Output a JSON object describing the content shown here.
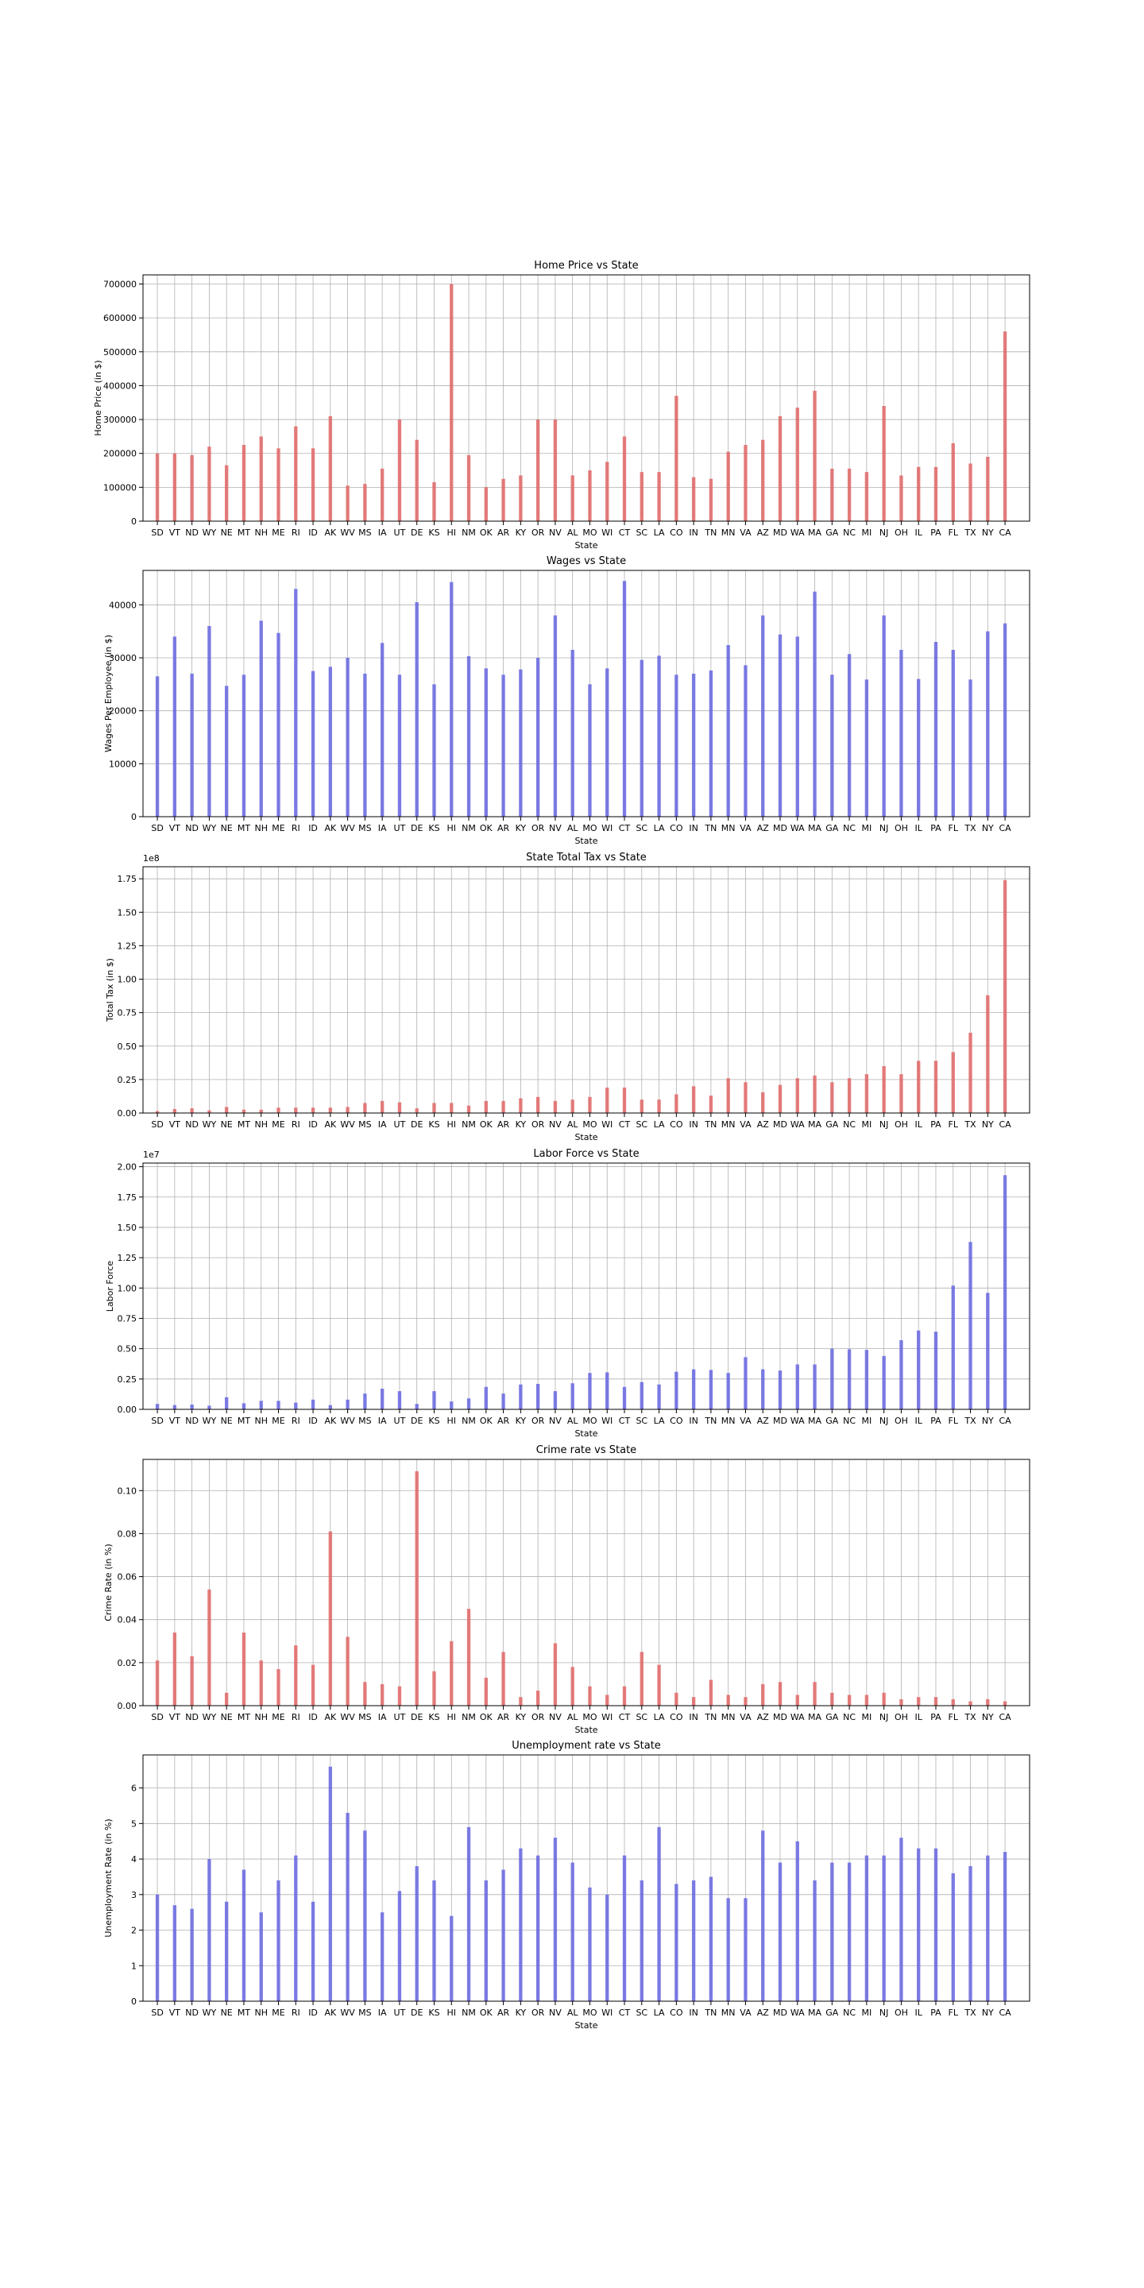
{
  "chart_data": [
    {
      "type": "bar",
      "title": "Home Price vs State",
      "xlabel": "State",
      "ylabel": "Home Price (in $)",
      "color": "#e06666",
      "categories": [
        "SD",
        "VT",
        "ND",
        "WY",
        "NE",
        "MT",
        "NH",
        "ME",
        "RI",
        "ID",
        "AK",
        "WV",
        "MS",
        "IA",
        "UT",
        "DE",
        "KS",
        "HI",
        "NM",
        "OK",
        "AR",
        "KY",
        "OR",
        "NV",
        "AL",
        "MO",
        "WI",
        "CT",
        "SC",
        "LA",
        "CO",
        "IN",
        "TN",
        "MN",
        "VA",
        "AZ",
        "MD",
        "WA",
        "MA",
        "GA",
        "NC",
        "MI",
        "NJ",
        "OH",
        "IL",
        "PA",
        "FL",
        "TX",
        "NY",
        "CA"
      ],
      "values": [
        200000,
        200000,
        195000,
        220000,
        165000,
        225000,
        250000,
        215000,
        280000,
        215000,
        310000,
        105000,
        110000,
        155000,
        300000,
        240000,
        115000,
        700000,
        195000,
        100000,
        125000,
        135000,
        300000,
        300000,
        135000,
        150000,
        175000,
        250000,
        145000,
        145000,
        370000,
        130000,
        125000,
        205000,
        225000,
        240000,
        310000,
        335000,
        385000,
        155000,
        155000,
        145000,
        340000,
        135000,
        160000,
        160000,
        230000,
        170000,
        190000,
        560000
      ],
      "yticks": [
        0,
        100000,
        200000,
        300000,
        400000,
        500000,
        600000,
        700000
      ],
      "ytick_labels": [
        "0",
        "100000",
        "200000",
        "300000",
        "400000",
        "500000",
        "600000",
        "700000"
      ],
      "ylim": [
        0,
        727000
      ],
      "offset_label": "",
      "grid": true
    },
    {
      "type": "bar",
      "title": "Wages vs State",
      "xlabel": "State",
      "ylabel": "Wages Per Employee (in $)",
      "color": "#6666e0",
      "categories": [
        "SD",
        "VT",
        "ND",
        "WY",
        "NE",
        "MT",
        "NH",
        "ME",
        "RI",
        "ID",
        "AK",
        "WV",
        "MS",
        "IA",
        "UT",
        "DE",
        "KS",
        "HI",
        "NM",
        "OK",
        "AR",
        "KY",
        "OR",
        "NV",
        "AL",
        "MO",
        "WI",
        "CT",
        "SC",
        "LA",
        "CO",
        "IN",
        "TN",
        "MN",
        "VA",
        "AZ",
        "MD",
        "WA",
        "MA",
        "GA",
        "NC",
        "MI",
        "NJ",
        "OH",
        "IL",
        "PA",
        "FL",
        "TX",
        "NY",
        "CA"
      ],
      "values": [
        26500,
        34000,
        27000,
        36000,
        24700,
        26800,
        37000,
        34700,
        43000,
        27500,
        28300,
        30000,
        27000,
        32800,
        26800,
        40500,
        25000,
        44300,
        30300,
        28000,
        26800,
        27800,
        30000,
        38000,
        31500,
        25000,
        28000,
        44500,
        29600,
        30400,
        26800,
        27000,
        27600,
        32400,
        28600,
        38000,
        34400,
        34000,
        42500,
        26800,
        30700,
        25900,
        38000,
        31500,
        26000,
        33000,
        31500,
        25900,
        35000,
        36500
      ],
      "yticks": [
        0,
        10000,
        20000,
        30000,
        40000
      ],
      "ytick_labels": [
        "0",
        "10000",
        "20000",
        "30000",
        "40000"
      ],
      "ylim": [
        0,
        46500
      ],
      "offset_label": "",
      "grid": true
    },
    {
      "type": "bar",
      "title": "State Total Tax vs State",
      "xlabel": "State",
      "ylabel": "Total Tax (in $)",
      "color": "#e06666",
      "categories": [
        "SD",
        "VT",
        "ND",
        "WY",
        "NE",
        "MT",
        "NH",
        "ME",
        "RI",
        "ID",
        "AK",
        "WV",
        "MS",
        "IA",
        "UT",
        "DE",
        "KS",
        "HI",
        "NM",
        "OK",
        "AR",
        "KY",
        "OR",
        "NV",
        "AL",
        "MO",
        "WI",
        "CT",
        "SC",
        "LA",
        "CO",
        "IN",
        "TN",
        "MN",
        "VA",
        "AZ",
        "MD",
        "WA",
        "MA",
        "GA",
        "NC",
        "MI",
        "NJ",
        "OH",
        "IL",
        "PA",
        "FL",
        "TX",
        "NY",
        "CA"
      ],
      "values": [
        0.015,
        0.03,
        0.035,
        0.02,
        0.045,
        0.025,
        0.025,
        0.04,
        0.04,
        0.04,
        0.04,
        0.045,
        0.075,
        0.09,
        0.08,
        0.035,
        0.075,
        0.075,
        0.055,
        0.09,
        0.09,
        0.11,
        0.12,
        0.09,
        0.1,
        0.12,
        0.19,
        0.19,
        0.1,
        0.1,
        0.14,
        0.2,
        0.13,
        0.26,
        0.23,
        0.155,
        0.21,
        0.26,
        0.28,
        0.23,
        0.26,
        0.29,
        0.35,
        0.29,
        0.39,
        0.39,
        0.455,
        0.6,
        0.88,
        1.74
      ],
      "yticks": [
        0,
        0.25,
        0.5,
        0.75,
        1.0,
        1.25,
        1.5,
        1.75
      ],
      "ytick_labels": [
        "0.00",
        "0.25",
        "0.50",
        "0.75",
        "1.00",
        "1.25",
        "1.50",
        "1.75"
      ],
      "ylim": [
        0,
        1.84
      ],
      "offset_label": "1e8",
      "grid": true
    },
    {
      "type": "bar",
      "title": "Labor Force vs State",
      "xlabel": "State",
      "ylabel": "Labor Force",
      "color": "#6666e0",
      "categories": [
        "SD",
        "VT",
        "ND",
        "WY",
        "NE",
        "MT",
        "NH",
        "ME",
        "RI",
        "ID",
        "AK",
        "WV",
        "MS",
        "IA",
        "UT",
        "DE",
        "KS",
        "HI",
        "NM",
        "OK",
        "AR",
        "KY",
        "OR",
        "NV",
        "AL",
        "MO",
        "WI",
        "CT",
        "SC",
        "LA",
        "CO",
        "IN",
        "TN",
        "MN",
        "VA",
        "AZ",
        "MD",
        "WA",
        "MA",
        "GA",
        "NC",
        "MI",
        "NJ",
        "OH",
        "IL",
        "PA",
        "FL",
        "TX",
        "NY",
        "CA"
      ],
      "values": [
        0.045,
        0.035,
        0.04,
        0.03,
        0.1,
        0.05,
        0.07,
        0.07,
        0.055,
        0.08,
        0.035,
        0.08,
        0.13,
        0.17,
        0.15,
        0.045,
        0.15,
        0.065,
        0.09,
        0.185,
        0.13,
        0.205,
        0.21,
        0.15,
        0.215,
        0.3,
        0.305,
        0.185,
        0.225,
        0.205,
        0.31,
        0.33,
        0.325,
        0.3,
        0.43,
        0.33,
        0.32,
        0.37,
        0.37,
        0.5,
        0.495,
        0.49,
        0.44,
        0.57,
        0.65,
        0.64,
        1.02,
        1.38,
        0.96,
        1.93
      ],
      "yticks": [
        0,
        0.25,
        0.5,
        0.75,
        1.0,
        1.25,
        1.5,
        1.75,
        2.0
      ],
      "ytick_labels": [
        "0.00",
        "0.25",
        "0.50",
        "0.75",
        "1.00",
        "1.25",
        "1.50",
        "1.75",
        "2.00"
      ],
      "ylim": [
        0,
        2.03
      ],
      "offset_label": "1e7",
      "grid": true
    },
    {
      "type": "bar",
      "title": "Crime rate vs State",
      "xlabel": "State",
      "ylabel": "Crime Rate (in %)",
      "color": "#e06666",
      "categories": [
        "SD",
        "VT",
        "ND",
        "WY",
        "NE",
        "MT",
        "NH",
        "ME",
        "RI",
        "ID",
        "AK",
        "WV",
        "MS",
        "IA",
        "UT",
        "DE",
        "KS",
        "HI",
        "NM",
        "OK",
        "AR",
        "KY",
        "OR",
        "NV",
        "AL",
        "MO",
        "WI",
        "CT",
        "SC",
        "LA",
        "CO",
        "IN",
        "TN",
        "MN",
        "VA",
        "AZ",
        "MD",
        "WA",
        "MA",
        "GA",
        "NC",
        "MI",
        "NJ",
        "OH",
        "IL",
        "PA",
        "FL",
        "TX",
        "NY",
        "CA"
      ],
      "values": [
        0.021,
        0.034,
        0.023,
        0.054,
        0.006,
        0.034,
        0.021,
        0.017,
        0.028,
        0.019,
        0.081,
        0.032,
        0.011,
        0.01,
        0.009,
        0.109,
        0.016,
        0.03,
        0.045,
        0.013,
        0.025,
        0.004,
        0.007,
        0.029,
        0.018,
        0.009,
        0.005,
        0.009,
        0.025,
        0.019,
        0.006,
        0.004,
        0.012,
        0.005,
        0.004,
        0.01,
        0.011,
        0.005,
        0.011,
        0.006,
        0.005,
        0.005,
        0.006,
        0.003,
        0.004,
        0.004,
        0.003,
        0.002,
        0.003,
        0.002
      ],
      "yticks": [
        0,
        0.02,
        0.04,
        0.06,
        0.08,
        0.1
      ],
      "ytick_labels": [
        "0.00",
        "0.02",
        "0.04",
        "0.06",
        "0.08",
        "0.10"
      ],
      "ylim": [
        0,
        0.1145
      ],
      "offset_label": "",
      "grid": true
    },
    {
      "type": "bar",
      "title": "Unemployment rate vs State",
      "xlabel": "State",
      "ylabel": "Unemployment Rate (in %)",
      "color": "#6666e0",
      "categories": [
        "SD",
        "VT",
        "ND",
        "WY",
        "NE",
        "MT",
        "NH",
        "ME",
        "RI",
        "ID",
        "AK",
        "WV",
        "MS",
        "IA",
        "UT",
        "DE",
        "KS",
        "HI",
        "NM",
        "OK",
        "AR",
        "KY",
        "OR",
        "NV",
        "AL",
        "MO",
        "WI",
        "CT",
        "SC",
        "LA",
        "CO",
        "IN",
        "TN",
        "MN",
        "VA",
        "AZ",
        "MD",
        "WA",
        "MA",
        "GA",
        "NC",
        "MI",
        "NJ",
        "OH",
        "IL",
        "PA",
        "FL",
        "TX",
        "NY",
        "CA"
      ],
      "values": [
        3.0,
        2.7,
        2.6,
        4.0,
        2.8,
        3.7,
        2.5,
        3.4,
        4.1,
        2.8,
        6.6,
        5.3,
        4.8,
        2.5,
        3.1,
        3.8,
        3.4,
        2.4,
        4.9,
        3.4,
        3.7,
        4.3,
        4.1,
        4.6,
        3.9,
        3.2,
        3.0,
        4.1,
        3.4,
        4.9,
        3.3,
        3.4,
        3.5,
        2.9,
        2.9,
        4.8,
        3.9,
        4.5,
        3.4,
        3.9,
        3.9,
        4.1,
        4.1,
        4.6,
        4.3,
        4.3,
        3.6,
        3.8,
        4.1,
        4.2
      ],
      "yticks": [
        0,
        1,
        2,
        3,
        4,
        5,
        6
      ],
      "ytick_labels": [
        "0",
        "1",
        "2",
        "3",
        "4",
        "5",
        "6"
      ],
      "ylim": [
        0,
        6.93
      ],
      "offset_label": "",
      "grid": true
    }
  ]
}
